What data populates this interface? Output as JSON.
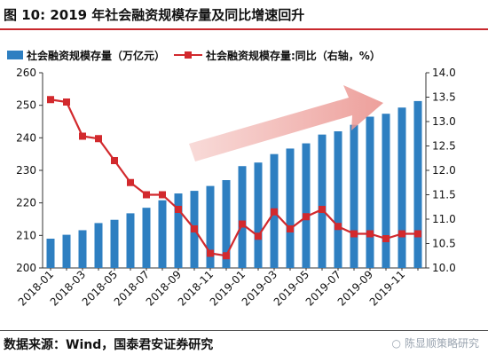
{
  "header": {
    "title": "图 10:  2019 年社会融资规模存量及同比增速回升"
  },
  "footer": {
    "source": "数据来源：Wind，国泰君安证券研究",
    "watermark": "陈显顺策略研究",
    "watermark_icon": "wechat-icon"
  },
  "colors": {
    "bar": "#2e7fc1",
    "line": "#d2292d",
    "arrow": "#f0a8a4",
    "title_rule": "#c8282d"
  },
  "chart_data": {
    "type": "bar",
    "series": [
      {
        "name": "社会融资规模存量（万亿元）",
        "type": "bar",
        "axis": "left",
        "values": [
          209.0,
          210.2,
          211.6,
          213.8,
          214.8,
          216.8,
          218.5,
          220.8,
          222.9,
          223.7,
          225.2,
          227.0,
          231.3,
          232.4,
          235.0,
          236.7,
          238.3,
          241.0,
          242.0,
          244.0,
          246.5,
          247.4,
          249.3,
          251.3
        ]
      },
      {
        "name": "社会融资规模存量:同比（右轴，%）",
        "type": "line",
        "axis": "right",
        "values": [
          13.45,
          13.4,
          12.7,
          12.65,
          12.2,
          11.75,
          11.5,
          11.5,
          11.2,
          10.8,
          10.3,
          10.25,
          10.9,
          10.65,
          11.15,
          10.8,
          11.05,
          11.2,
          10.85,
          10.7,
          10.7,
          10.6,
          10.7,
          10.7
        ]
      }
    ],
    "x": [
      "2018-01",
      "2018-02",
      "2018-03",
      "2018-04",
      "2018-05",
      "2018-06",
      "2018-07",
      "2018-08",
      "2018-09",
      "2018-10",
      "2018-11",
      "2018-12",
      "2019-01",
      "2019-02",
      "2019-03",
      "2019-04",
      "2019-05",
      "2019-06",
      "2019-07",
      "2019-08",
      "2019-09",
      "2019-10",
      "2019-11",
      "2019-12"
    ],
    "xtick_labels": [
      "2018-01",
      "2018-03",
      "2018-05",
      "2018-07",
      "2018-09",
      "2018-11",
      "2019-01",
      "2019-03",
      "2019-05",
      "2019-07",
      "2019-09",
      "2019-11"
    ],
    "ylim": [
      200,
      260
    ],
    "yticks": [
      "200",
      "210",
      "220",
      "230",
      "240",
      "250",
      "260"
    ],
    "y2lim": [
      10.0,
      14.0
    ],
    "y2ticks": [
      "10.0",
      "10.5",
      "11.0",
      "11.5",
      "12.0",
      "12.5",
      "13.0",
      "13.5",
      "14.0"
    ],
    "legend_position": "top",
    "grid": false,
    "annotation": "upward trend arrow"
  }
}
